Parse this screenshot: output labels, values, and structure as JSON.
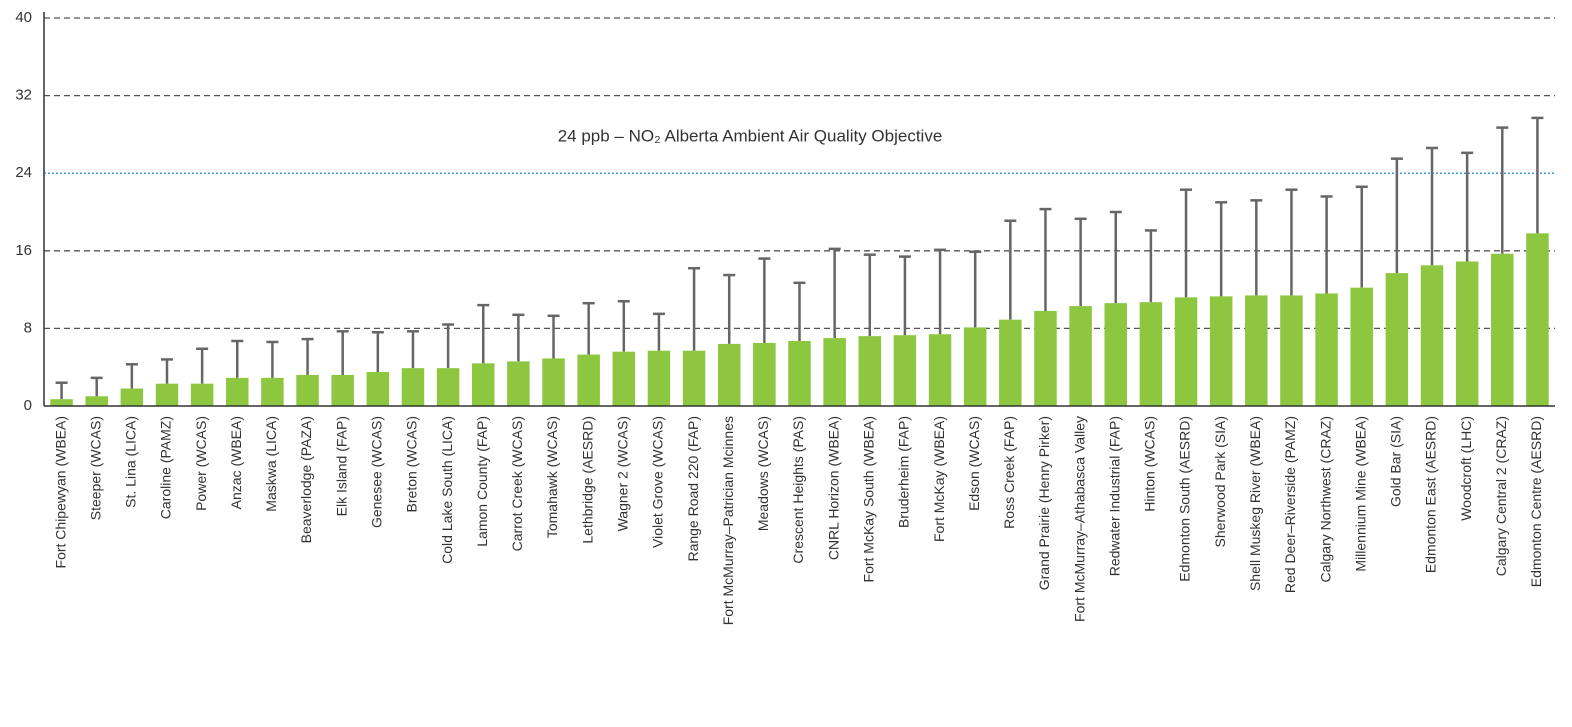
{
  "chart_data": {
    "type": "bar",
    "categories": [
      "Fort Chipewyan (WBEA)",
      "Steeper (WCAS)",
      "St. Lina (LICA)",
      "Caroline (PAMZ)",
      "Power (WCAS)",
      "Anzac (WBEA)",
      "Maskwa (LICA)",
      "Beaverlodge (PAZA)",
      "Elk Island (FAP)",
      "Genesee (WCAS)",
      "Breton (WCAS)",
      "Cold Lake South (LICA)",
      "Lamon County (FAP)",
      "Carrot Creek (WCAS)",
      "Tomahawk (WCAS)",
      "Lethbridge (AESRD)",
      "Wagner 2 (WCAS)",
      "Violet Grove (WCAS)",
      "Range Road 220 (FAP)",
      "Fort McMurray–Patrician Mcinnes",
      "Meadows (WCAS)",
      "Crescent Heights (PAS)",
      "CNRL Horizon (WBEA)",
      "Fort McKay South (WBEA)",
      "Bruderheim (FAP)",
      "Fort McKay (WBEA)",
      "Edson (WCAS)",
      "Ross Creek (FAP)",
      "Grand Prairie (Henry Pirker)",
      "Fort McMurray–Athabasca Valley",
      "Redwater Industrial (FAP)",
      "Hinton (WCAS)",
      "Edmonton South (AESRD)",
      "Sherwood Park (SIA)",
      "Shell Muskeg River (WBEA)",
      "Red Deer–Riverside (PAMZ)",
      "Calgary Northwest (CRAZ)",
      "Millennium Mine (WBEA)",
      "Gold Bar (SIA)",
      "Edmonton East (AESRD)",
      "Woodcroft (LHC)",
      "Calgary Central 2 (CRAZ)",
      "Edmonton Centre (AESRD)"
    ],
    "values": [
      0.7,
      1.0,
      1.8,
      2.3,
      2.3,
      2.9,
      2.9,
      3.2,
      3.2,
      3.5,
      3.9,
      3.9,
      4.4,
      4.6,
      4.9,
      5.3,
      5.6,
      5.7,
      5.7,
      6.4,
      6.5,
      6.7,
      7.0,
      7.2,
      7.3,
      7.4,
      8.1,
      8.9,
      9.8,
      10.3,
      10.6,
      10.7,
      11.2,
      11.3,
      11.4,
      11.4,
      11.6,
      12.2,
      13.7,
      14.5,
      14.9,
      15.7,
      17.8
    ],
    "errors": [
      1.7,
      1.9,
      2.5,
      2.5,
      3.6,
      3.8,
      3.7,
      3.7,
      4.5,
      4.1,
      3.8,
      4.5,
      6.0,
      4.8,
      4.4,
      5.3,
      5.2,
      3.8,
      8.5,
      7.1,
      8.7,
      6.0,
      9.2,
      8.4,
      8.1,
      8.7,
      7.8,
      10.2,
      10.5,
      9.0,
      9.4,
      7.4,
      11.1,
      9.7,
      9.8,
      10.9,
      10.0,
      10.4,
      11.8,
      12.1,
      11.2,
      13.0,
      11.9
    ],
    "color": "#8dc63f",
    "error_color": "#666666",
    "ylim": [
      0,
      40
    ],
    "yticks": [
      0,
      8,
      16,
      24,
      32,
      40
    ],
    "grid": true,
    "reference_line": {
      "value": 24,
      "color": "#3aa0d8",
      "label": "24 ppb – NO₂ Alberta Ambient Air Quality Objective"
    }
  }
}
